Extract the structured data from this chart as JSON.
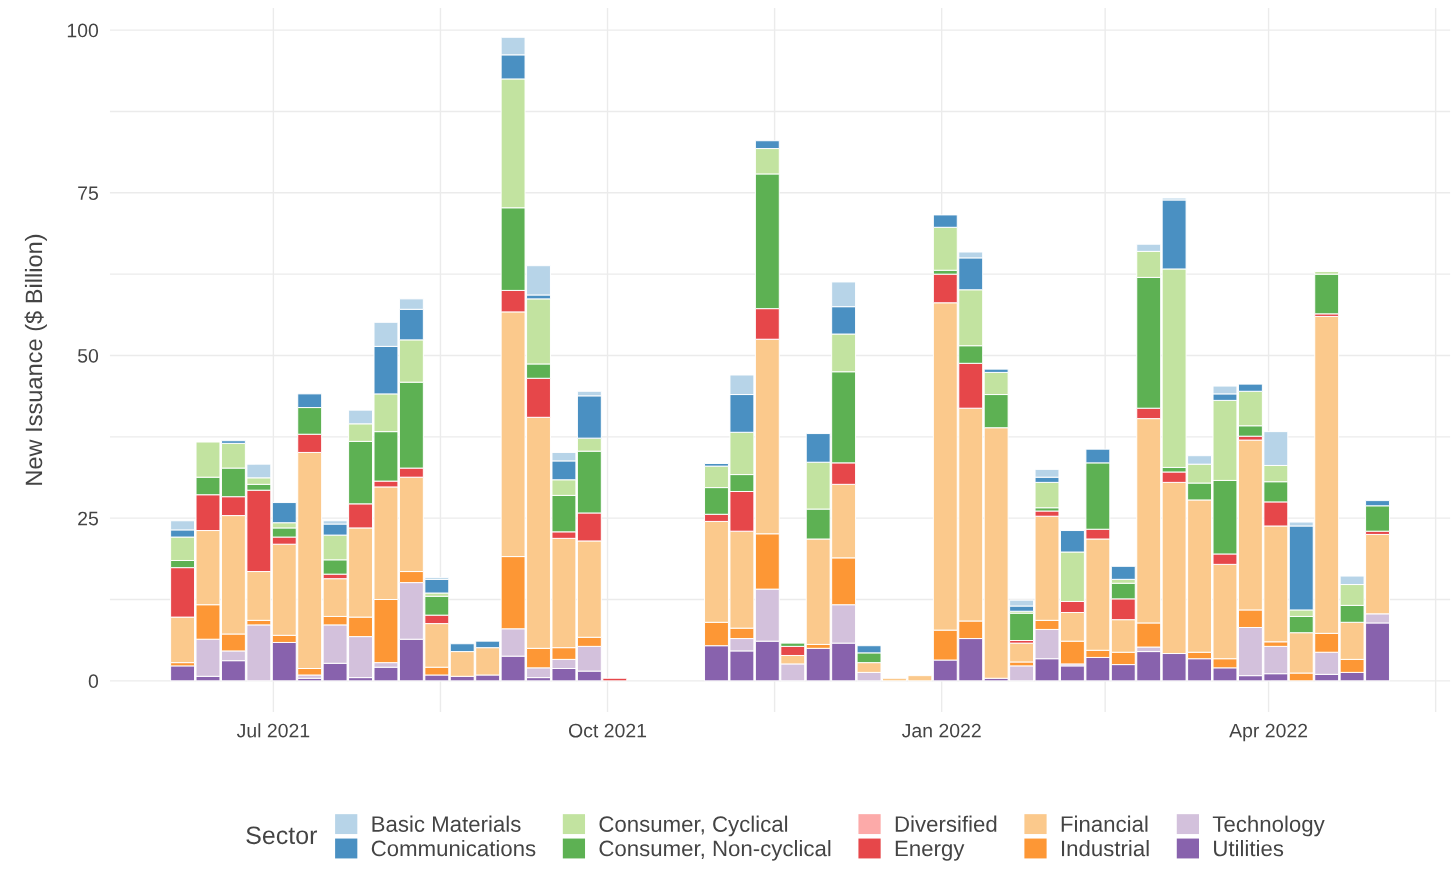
{
  "chart_data": {
    "type": "bar",
    "stacked": true,
    "ylabel": "New Issuance ($ Billion)",
    "legend_title": "Sector",
    "legend": "bottom",
    "grid": true,
    "x": [
      "2021-06-06",
      "2021-06-13",
      "2021-06-20",
      "2021-06-27",
      "2021-07-04",
      "2021-07-11",
      "2021-07-18",
      "2021-07-25",
      "2021-08-01",
      "2021-08-08",
      "2021-08-15",
      "2021-08-22",
      "2021-08-29",
      "2021-09-05",
      "2021-09-12",
      "2021-09-19",
      "2021-09-26",
      "2021-10-03",
      "2021-10-31",
      "2021-11-07",
      "2021-11-14",
      "2021-11-21",
      "2021-11-28",
      "2021-12-05",
      "2021-12-12",
      "2021-12-19",
      "2021-12-26",
      "2022-01-02",
      "2022-01-09",
      "2022-01-16",
      "2022-01-23",
      "2022-01-30",
      "2022-02-06",
      "2022-02-13",
      "2022-02-20",
      "2022-02-27",
      "2022-03-06",
      "2022-03-13",
      "2022-03-20",
      "2022-03-27",
      "2022-04-03",
      "2022-04-10",
      "2022-04-17",
      "2022-04-24",
      "2022-05-01"
    ],
    "xlim": [
      "2021-05-17",
      "2022-05-21"
    ],
    "xticks": [
      {
        "value": "2021-07-01",
        "label": "Jul 2021"
      },
      {
        "value": "2021-08-16",
        "label": null
      },
      {
        "value": "2021-10-01",
        "label": "Oct 2021"
      },
      {
        "value": "2021-11-16",
        "label": null
      },
      {
        "value": "2022-01-01",
        "label": "Jan 2022"
      },
      {
        "value": "2022-02-15",
        "label": null
      },
      {
        "value": "2022-04-01",
        "label": "Apr 2022"
      },
      {
        "value": "2022-05-17",
        "label": null
      }
    ],
    "ylim": [
      -4.8,
      103.4
    ],
    "yticks": [
      0,
      {
        "value": 12.5,
        "label": null
      },
      25,
      {
        "value": 37.5,
        "label": null
      },
      50,
      {
        "value": 62.5,
        "label": null
      },
      75,
      {
        "value": 87.5,
        "label": null
      },
      100
    ],
    "series": [
      {
        "name": "Utilities",
        "color": "#8862ad",
        "values": [
          2.3,
          0.7,
          3.1,
          0,
          5.9,
          0.4,
          2.7,
          0.5,
          2.1,
          6.4,
          0.9,
          0.7,
          0.9,
          3.8,
          0.5,
          1.9,
          1.5,
          0,
          5.4,
          4.6,
          6.1,
          0,
          5.0,
          5.8,
          0,
          0,
          0,
          3.2,
          6.5,
          0.4,
          0,
          3.4,
          2.3,
          3.6,
          2.5,
          4.5,
          4.2,
          3.4,
          2.0,
          0.8,
          1.1,
          0,
          1.0,
          1.3,
          8.9
        ]
      },
      {
        "name": "Technology",
        "color": "#d3c1dc",
        "values": [
          0,
          5.7,
          1.5,
          8.6,
          0,
          0.5,
          5.9,
          6.3,
          0.7,
          8.7,
          0,
          0,
          0,
          4.2,
          1.5,
          1.4,
          3.8,
          0,
          null,
          1.9,
          8.0,
          2.6,
          0,
          5.9,
          1.3,
          0,
          0,
          0,
          0,
          0,
          2.3,
          4.5,
          0.3,
          0,
          0,
          0.7,
          0,
          0,
          0,
          7.4,
          4.2,
          0,
          3.4,
          0,
          1.4
        ]
      },
      {
        "name": "Industrial",
        "color": "#fd9735",
        "values": [
          0.5,
          5.3,
          2.6,
          0.7,
          1.1,
          1.0,
          1.3,
          3.0,
          9.7,
          1.7,
          1.2,
          0,
          0,
          11.1,
          3.0,
          1.8,
          1.4,
          0,
          3.6,
          1.6,
          8.5,
          0,
          0.6,
          7.2,
          0,
          0,
          0,
          4.6,
          2.7,
          0,
          0.6,
          1.4,
          3.5,
          1.1,
          1.9,
          3.7,
          0,
          1.0,
          1.4,
          2.7,
          0.7,
          1.2,
          2.9,
          2.0,
          0
        ]
      },
      {
        "name": "Financial",
        "color": "#fbc98c",
        "values": [
          7.0,
          11.4,
          18.2,
          7.5,
          14.0,
          33.2,
          5.8,
          13.7,
          17.3,
          14.5,
          6.7,
          3.8,
          4.2,
          37.6,
          35.5,
          16.8,
          14.8,
          0,
          15.5,
          14.9,
          29.9,
          1.3,
          16.2,
          11.3,
          1.5,
          0.4,
          0.8,
          50.3,
          32.7,
          38.5,
          2.9,
          16.0,
          4.4,
          17.1,
          5.0,
          31.4,
          26.3,
          23.4,
          14.5,
          26.1,
          17.8,
          6.2,
          48.7,
          5.7,
          12.2
        ]
      },
      {
        "name": "Energy",
        "color": "#e6474a",
        "values": [
          7.6,
          5.5,
          2.9,
          12.5,
          1.1,
          2.8,
          0.7,
          3.7,
          0.9,
          1.4,
          1.3,
          0,
          0,
          3.3,
          6.0,
          1.0,
          4.3,
          0.4,
          1.1,
          6.1,
          4.7,
          1.4,
          0,
          3.3,
          0,
          0,
          0,
          4.4,
          6.9,
          0,
          0.4,
          0.8,
          1.7,
          1.5,
          3.2,
          1.6,
          1.6,
          0,
          1.6,
          0.6,
          3.7,
          0,
          0.4,
          0,
          0.5
        ]
      },
      {
        "name": "Diversified",
        "color": "#fcaaa9",
        "values": [
          0,
          0,
          0,
          0,
          0,
          0,
          0,
          0,
          0,
          0,
          0,
          0,
          0,
          0,
          0,
          0,
          0,
          0,
          0,
          0,
          0,
          0,
          0,
          0,
          0,
          0,
          0,
          0,
          0,
          0,
          0,
          0,
          0,
          0,
          0,
          0,
          0,
          0,
          0,
          0,
          0,
          0,
          0,
          0,
          0
        ]
      },
      {
        "name": "Consumer, Non-cyclical",
        "color": "#5db153",
        "values": [
          1.1,
          2.7,
          4.4,
          0.9,
          1.4,
          4.1,
          2.2,
          9.6,
          7.6,
          13.2,
          2.9,
          0,
          0,
          12.7,
          2.2,
          5.6,
          9.5,
          0,
          4.1,
          2.6,
          20.7,
          0.5,
          4.6,
          14.0,
          1.5,
          0,
          0,
          0.6,
          2.7,
          5.1,
          4.2,
          0.5,
          null,
          10.2,
          2.4,
          20.1,
          0.7,
          2.6,
          11.3,
          1.6,
          3.1,
          2.5,
          6.1,
          2.6,
          3.9
        ]
      },
      {
        "name": "Consumer, Cyclical",
        "color": "#c2e3a0",
        "values": [
          3.6,
          5.4,
          3.8,
          1.0,
          0.8,
          0,
          3.8,
          2.7,
          5.8,
          6.5,
          0.5,
          0,
          0,
          19.8,
          10.0,
          2.4,
          2.0,
          0,
          3.3,
          6.5,
          3.9,
          0,
          7.2,
          5.8,
          0,
          0,
          0,
          6.6,
          8.6,
          3.4,
          0.3,
          3.9,
          7.6,
          0,
          0.6,
          4.0,
          30.5,
          2.9,
          12.3,
          5.3,
          2.5,
          1.0,
          0.4,
          3.2,
          null
        ]
      },
      {
        "name": "Communications",
        "color": "#4a90c2",
        "values": [
          1.1,
          0,
          0.4,
          0,
          3.1,
          2.1,
          1.7,
          0,
          7.3,
          4.7,
          2.1,
          1.2,
          1.0,
          3.7,
          0.6,
          2.9,
          6.5,
          0,
          0.4,
          5.8,
          1.2,
          0,
          4.4,
          4.2,
          1.1,
          0,
          0,
          1.9,
          4.9,
          0.5,
          0.8,
          0.8,
          3.3,
          2.1,
          2.0,
          0,
          10.6,
          0,
          1.0,
          1.1,
          0,
          12.9,
          0,
          0,
          0.8
        ]
      },
      {
        "name": "Basic Materials",
        "color": "#b7d4e8",
        "values": [
          1.4,
          0,
          0,
          2.1,
          0,
          0,
          0.5,
          2.1,
          3.7,
          1.6,
          0.3,
          0,
          0,
          2.7,
          4.5,
          1.3,
          0.7,
          0,
          0,
          3.0,
          0,
          0,
          0,
          3.8,
          0,
          0,
          0,
          0,
          0.9,
          0,
          0.9,
          1.2,
          0,
          0,
          0,
          1.1,
          0.3,
          1.3,
          1.2,
          0,
          5.2,
          0.6,
          0,
          1.3,
          0
        ]
      }
    ]
  }
}
